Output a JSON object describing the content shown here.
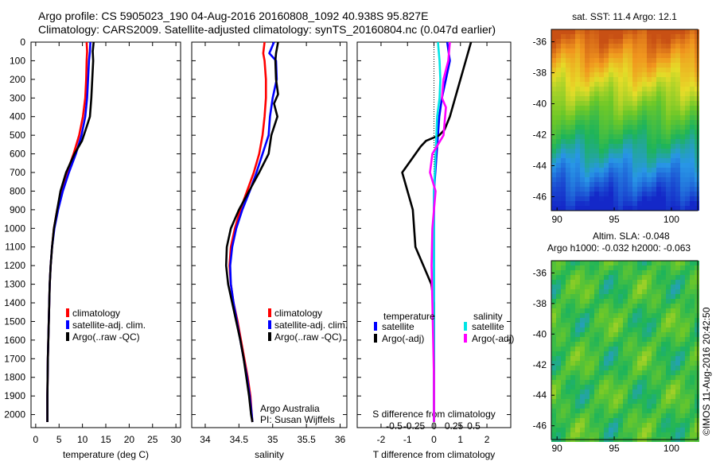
{
  "header": {
    "line1": "Argo profile: CS 5905023_190 04-Aug-2016 20160808_1092 40.938S 95.827E",
    "line2": "Climatology: CARS2009. Satellite-adjusted climatology: synTS_20160804.nc (0.047d earlier)"
  },
  "depth_ticks": [
    "0",
    "100",
    "200",
    "300",
    "400",
    "500",
    "600",
    "700",
    "800",
    "900",
    "1000",
    "1100",
    "1200",
    "1300",
    "1400",
    "1500",
    "1600",
    "1700",
    "1800",
    "1900",
    "2000"
  ],
  "colors": {
    "climatology": "#ff0000",
    "satellite": "#0000ff",
    "argo": "#000000",
    "sal_satellite": "#00e5e5",
    "sal_argo": "#ff00ff"
  },
  "chart_data": [
    {
      "type": "line",
      "id": "temperature",
      "xlabel": "temperature (deg C)",
      "ylabel": "",
      "xlim": [
        -1,
        31
      ],
      "ylim": [
        2070,
        0
      ],
      "xticks": [
        "0",
        "5",
        "10",
        "15",
        "20",
        "25",
        "30"
      ],
      "legend": [
        "climatology",
        "satellite-adj. clim.",
        "Argo(..raw -QC)"
      ],
      "series": [
        {
          "name": "climatology",
          "x": [
            10.9,
            11.0,
            10.9,
            10.8,
            10.6,
            10.1,
            9.3,
            8.1,
            6.7,
            5.5,
            4.6,
            3.9,
            3.5,
            3.2,
            3.0,
            2.9,
            2.8,
            2.7,
            2.6,
            2.55,
            2.5,
            2.5
          ],
          "y": [
            0,
            50,
            100,
            200,
            300,
            400,
            500,
            600,
            700,
            800,
            900,
            1000,
            1100,
            1200,
            1300,
            1400,
            1500,
            1600,
            1700,
            1800,
            1900,
            2040
          ]
        },
        {
          "name": "satellite-adj. clim.",
          "x": [
            11.7,
            11.6,
            11.4,
            11.2,
            11.0,
            10.6,
            9.8,
            8.6,
            7.1,
            5.8,
            4.8,
            4.0,
            3.5,
            3.2,
            3.0,
            2.9,
            2.8,
            2.7,
            2.6,
            2.55,
            2.5,
            2.5
          ],
          "y": [
            0,
            50,
            100,
            200,
            300,
            400,
            500,
            600,
            700,
            800,
            900,
            1000,
            1100,
            1200,
            1300,
            1400,
            1500,
            1600,
            1700,
            1800,
            1900,
            2040
          ]
        },
        {
          "name": "Argo(..raw -QC)",
          "x": [
            12.4,
            12.2,
            12.3,
            12.1,
            11.9,
            11.6,
            10.7,
            9.9,
            8.3,
            6.5,
            5.3,
            4.6,
            3.9,
            3.5,
            3.2,
            3.0,
            2.9,
            2.8,
            2.7,
            2.6,
            2.55,
            2.5,
            2.5
          ],
          "y": [
            0,
            50,
            100,
            200,
            300,
            400,
            470,
            530,
            600,
            700,
            800,
            900,
            1000,
            1100,
            1200,
            1300,
            1400,
            1500,
            1600,
            1700,
            1800,
            1900,
            2040
          ]
        }
      ]
    },
    {
      "type": "line",
      "id": "salinity",
      "xlabel": "salinity",
      "ylabel": "",
      "xlim": [
        33.8,
        36.1
      ],
      "ylim": [
        2070,
        0
      ],
      "xticks": [
        "34",
        "34.5",
        "35",
        "35.5",
        "36"
      ],
      "legend": [
        "climatology",
        "satellite-adj. clim.",
        "Argo(..raw -QC)"
      ],
      "annotation": [
        "Argo Australia",
        "PI: Susan Wijffels"
      ],
      "series": [
        {
          "name": "climatology",
          "x": [
            34.88,
            34.86,
            34.88,
            34.9,
            34.9,
            34.88,
            34.85,
            34.8,
            34.72,
            34.62,
            34.52,
            34.44,
            34.38,
            34.36,
            34.38,
            34.42,
            34.48,
            34.53,
            34.58,
            34.63,
            34.67,
            34.69,
            34.7
          ],
          "y": [
            0,
            60,
            100,
            200,
            300,
            400,
            500,
            600,
            700,
            800,
            900,
            1000,
            1100,
            1200,
            1300,
            1400,
            1500,
            1600,
            1700,
            1800,
            1900,
            2000,
            2040
          ]
        },
        {
          "name": "satellite-adj. clim.",
          "x": [
            35.02,
            34.95,
            35.05,
            35.06,
            35.0,
            34.96,
            34.94,
            34.85,
            34.76,
            34.66,
            34.55,
            34.46,
            34.4,
            34.37,
            34.38,
            34.42,
            34.47,
            34.52,
            34.57,
            34.62,
            34.66,
            34.69,
            34.7
          ],
          "y": [
            0,
            60,
            100,
            200,
            300,
            400,
            500,
            600,
            700,
            800,
            900,
            1000,
            1100,
            1200,
            1300,
            1400,
            1500,
            1600,
            1700,
            1800,
            1900,
            2000,
            2040
          ]
        },
        {
          "name": "Argo(..raw -QC)",
          "x": [
            35.08,
            35.05,
            35.04,
            35.05,
            35.08,
            35.02,
            35.07,
            34.98,
            34.94,
            34.8,
            34.65,
            34.5,
            34.38,
            34.32,
            34.31,
            34.34,
            34.4,
            34.46,
            34.52,
            34.57,
            34.61,
            34.65,
            34.68,
            34.7
          ],
          "y": [
            0,
            60,
            100,
            200,
            280,
            330,
            400,
            500,
            600,
            700,
            800,
            900,
            1000,
            1100,
            1200,
            1300,
            1400,
            1500,
            1600,
            1700,
            1800,
            1900,
            2000,
            2040
          ]
        }
      ]
    },
    {
      "type": "line",
      "id": "differences",
      "xlabel": "T difference from climatology",
      "top_label": "S difference from climatology",
      "xlim": [
        -2.9,
        2.9
      ],
      "ylim": [
        2070,
        0
      ],
      "xticks": [
        "-2",
        "-1",
        "0",
        "1",
        "2"
      ],
      "secondary_xticks": [
        "-0.5",
        "-0.25",
        "0",
        "0.25",
        "0.5"
      ],
      "legend_groups": [
        {
          "heading": "temperature",
          "items": [
            "satellite",
            "Argo(-adj)"
          ]
        },
        {
          "heading": "salinity",
          "items": [
            "satellite",
            "Argo(-adj)"
          ]
        }
      ],
      "series": [
        {
          "name": "temperature satellite",
          "x": [
            0.5,
            0.6,
            0.45,
            0.3,
            0.2,
            0.15,
            0.1,
            0.05,
            0.0,
            0.0,
            0.0,
            0.0,
            0.0,
            0.0,
            0.0,
            0.0
          ],
          "y": [
            0,
            100,
            200,
            300,
            400,
            500,
            600,
            700,
            800,
            900,
            1000,
            1200,
            1400,
            1600,
            1800,
            2040
          ]
        },
        {
          "name": "temperature Argo(-adj)",
          "x": [
            1.4,
            1.2,
            1.0,
            0.8,
            0.6,
            0.4,
            0.2,
            -0.3,
            -0.5,
            -1.2,
            -0.8,
            -0.7,
            -0.4,
            -0.1,
            0.0,
            0.0,
            0.0,
            0.0
          ],
          "y": [
            0,
            100,
            200,
            300,
            400,
            470,
            500,
            530,
            560,
            700,
            900,
            1100,
            1200,
            1300,
            1400,
            1600,
            1800,
            2040
          ]
        },
        {
          "name": "salinity satellite",
          "x": [
            0.05,
            0.07,
            0.08,
            0.07,
            0.04,
            0.03,
            0.02,
            0.01,
            0.0,
            0.0,
            0.0,
            0.0,
            0.0,
            0.0
          ],
          "y": [
            0,
            100,
            200,
            300,
            400,
            500,
            600,
            700,
            800,
            1000,
            1200,
            1500,
            1800,
            2040
          ]
        },
        {
          "name": "salinity Argo(-adj)",
          "x": [
            0.2,
            0.18,
            0.12,
            0.1,
            0.15,
            0.12,
            -0.02,
            -0.05,
            0.02,
            0.0,
            -0.02,
            -0.03,
            -0.02,
            -0.01,
            0.0,
            0.0
          ],
          "y": [
            0,
            100,
            200,
            300,
            350,
            500,
            600,
            700,
            800,
            900,
            1000,
            1200,
            1400,
            1600,
            1800,
            2040
          ]
        }
      ]
    }
  ],
  "maps": [
    {
      "id": "sst-map",
      "title": "sat. SST: 11.4  Argo: 12.1",
      "yticks": [
        "-36",
        "-38",
        "-40",
        "-42",
        "-44",
        "-46"
      ],
      "xticks": [
        "90",
        "95",
        "100"
      ],
      "lon": [
        89.5,
        102.3
      ],
      "lat": [
        -35.2,
        -46.9
      ]
    },
    {
      "id": "sla-map",
      "title_lines": [
        "Altim. SLA: -0.048",
        "Argo h1000: -0.032 h2000: -0.063"
      ],
      "yticks": [
        "-36",
        "-38",
        "-40",
        "-42",
        "-44",
        "-46"
      ],
      "xticks": [
        "90",
        "95",
        "100"
      ],
      "lon": [
        89.5,
        102.3
      ],
      "lat": [
        -35.2,
        -46.9
      ]
    }
  ],
  "credit": "©IMOS 11-Aug-2016 20:42:50"
}
